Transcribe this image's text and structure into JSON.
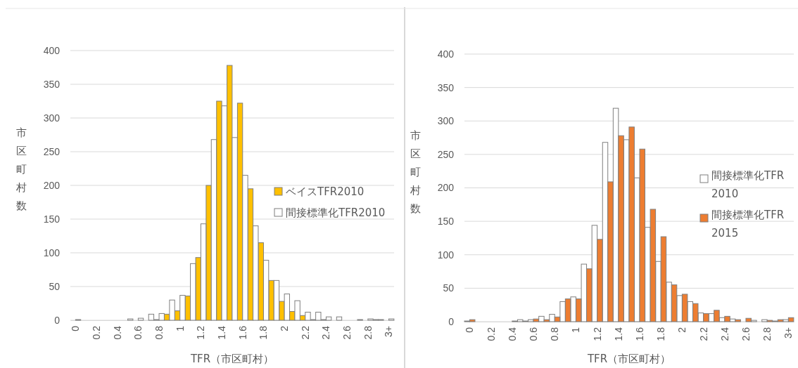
{
  "chart_data": [
    {
      "type": "bar",
      "xlabel": "TFR（市区町村）",
      "ylabel": "市区町村数",
      "categories": [
        "0",
        null,
        "0.2",
        null,
        "0.4",
        null,
        "0.6",
        null,
        "0.8",
        null,
        "1",
        null,
        "1.2",
        null,
        "1.4",
        null,
        "1.6",
        null,
        "1.8",
        null,
        "2",
        null,
        "2.2",
        null,
        "2.4",
        null,
        "2.6",
        null,
        "2.8",
        null,
        "3+"
      ],
      "series": [
        {
          "name": "ベイスTFR2010",
          "color": "#ffc000",
          "values": [
            0,
            0,
            0,
            0,
            0,
            0,
            0,
            0,
            1,
            9,
            14,
            36,
            93,
            200,
            325,
            378,
            322,
            195,
            115,
            59,
            28,
            13,
            7,
            1,
            1,
            0,
            0,
            0,
            0,
            1,
            0
          ]
        },
        {
          "name": "間接標準化TFR2010",
          "color": "#ffffff",
          "values": [
            1,
            0,
            0,
            0,
            0,
            2,
            3,
            9,
            10,
            30,
            37,
            84,
            143,
            268,
            318,
            271,
            215,
            140,
            89,
            59,
            39,
            29,
            12,
            12,
            5,
            5,
            0,
            1,
            2,
            1,
            2
          ]
        }
      ],
      "ylim": [
        0,
        400
      ],
      "yticks": [
        0,
        50,
        100,
        150,
        200,
        250,
        300,
        350,
        400
      ],
      "grid": "y",
      "legend": "right"
    },
    {
      "type": "bar",
      "xlabel": "TFR（市区町村）",
      "ylabel": "市区町村数",
      "categories": [
        "0",
        null,
        "0.2",
        null,
        "0.4",
        null,
        "0.6",
        null,
        "0.8",
        null,
        "1",
        null,
        "1.2",
        null,
        "1.4",
        null,
        "1.6",
        null,
        "1.8",
        null,
        "2",
        null,
        "2.2",
        null,
        "2.4",
        null,
        "2.6",
        null,
        "2.8",
        null,
        "3+"
      ],
      "series": [
        {
          "name": "間接標準化TFR2010",
          "color": "#ffffff",
          "values": [
            1,
            0,
            0,
            0,
            0,
            3,
            3,
            8,
            11,
            30,
            37,
            86,
            144,
            268,
            319,
            272,
            215,
            141,
            90,
            59,
            39,
            30,
            13,
            12,
            6,
            4,
            0,
            2,
            3,
            1,
            3
          ]
        },
        {
          "name": "間接標準化TFR2015",
          "color": "#ed7d31",
          "values": [
            3,
            0,
            0,
            0,
            1,
            1,
            4,
            3,
            7,
            34,
            34,
            79,
            123,
            209,
            278,
            291,
            258,
            168,
            127,
            55,
            41,
            27,
            12,
            17,
            8,
            3,
            5,
            0,
            2,
            3,
            6
          ]
        }
      ],
      "ylim": [
        0,
        400
      ],
      "yticks": [
        0,
        50,
        100,
        150,
        200,
        250,
        300,
        350,
        400
      ],
      "grid": "y",
      "legend": "right"
    }
  ]
}
